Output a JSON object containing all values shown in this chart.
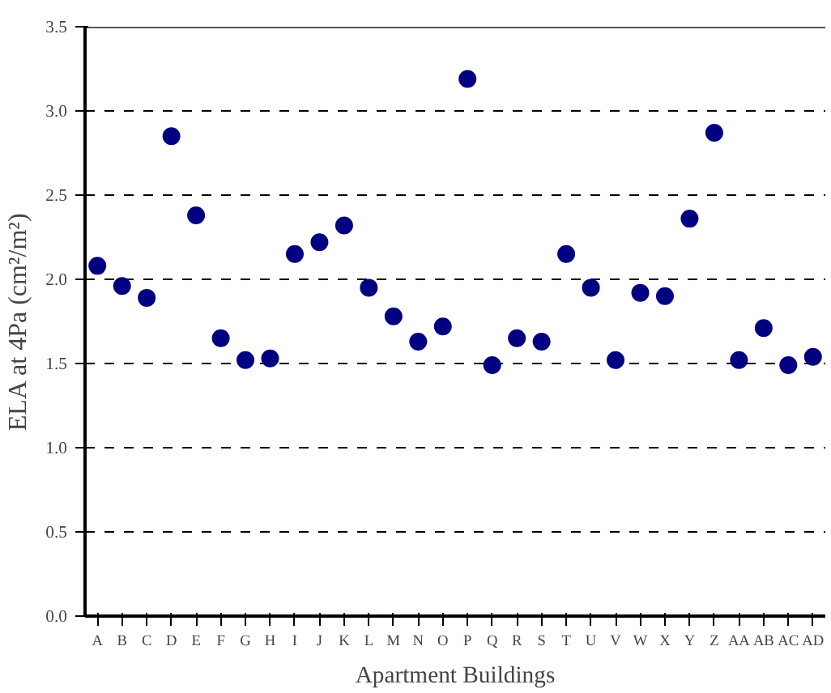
{
  "chart_data": {
    "type": "scatter",
    "xlabel": "Apartment Buildings",
    "ylabel": "ELA at 4Pa (cm²/m²)",
    "categories": [
      "A",
      "B",
      "C",
      "D",
      "E",
      "F",
      "G",
      "H",
      "I",
      "J",
      "K",
      "L",
      "M",
      "N",
      "O",
      "P",
      "Q",
      "R",
      "S",
      "T",
      "U",
      "V",
      "W",
      "X",
      "Y",
      "Z",
      "AA",
      "AB",
      "AC",
      "AD"
    ],
    "series": [
      {
        "color": "#000080",
        "values": [
          2.08,
          1.96,
          1.89,
          2.85,
          2.38,
          1.65,
          1.52,
          1.53,
          2.15,
          2.22,
          2.32,
          1.95,
          1.78,
          1.63,
          1.72,
          3.19,
          1.49,
          1.65,
          1.63,
          2.15,
          1.95,
          1.52,
          1.92,
          1.9,
          2.36,
          2.87,
          1.52,
          1.71,
          1.49,
          1.54
        ]
      }
    ],
    "ylim": [
      0,
      3.5
    ],
    "yticks": [
      {
        "value": 0,
        "label": "0.0"
      },
      {
        "value": 0.5,
        "label": "0.5"
      },
      {
        "value": 1,
        "label": "1.0"
      },
      {
        "value": 1.5,
        "label": "1.5"
      },
      {
        "value": 2,
        "label": "2.0"
      },
      {
        "value": 2.5,
        "label": "2.5"
      },
      {
        "value": 3,
        "label": "3.0"
      },
      {
        "value": 3.5,
        "label": "3.5"
      }
    ],
    "grid": "y",
    "marker": "circle"
  }
}
